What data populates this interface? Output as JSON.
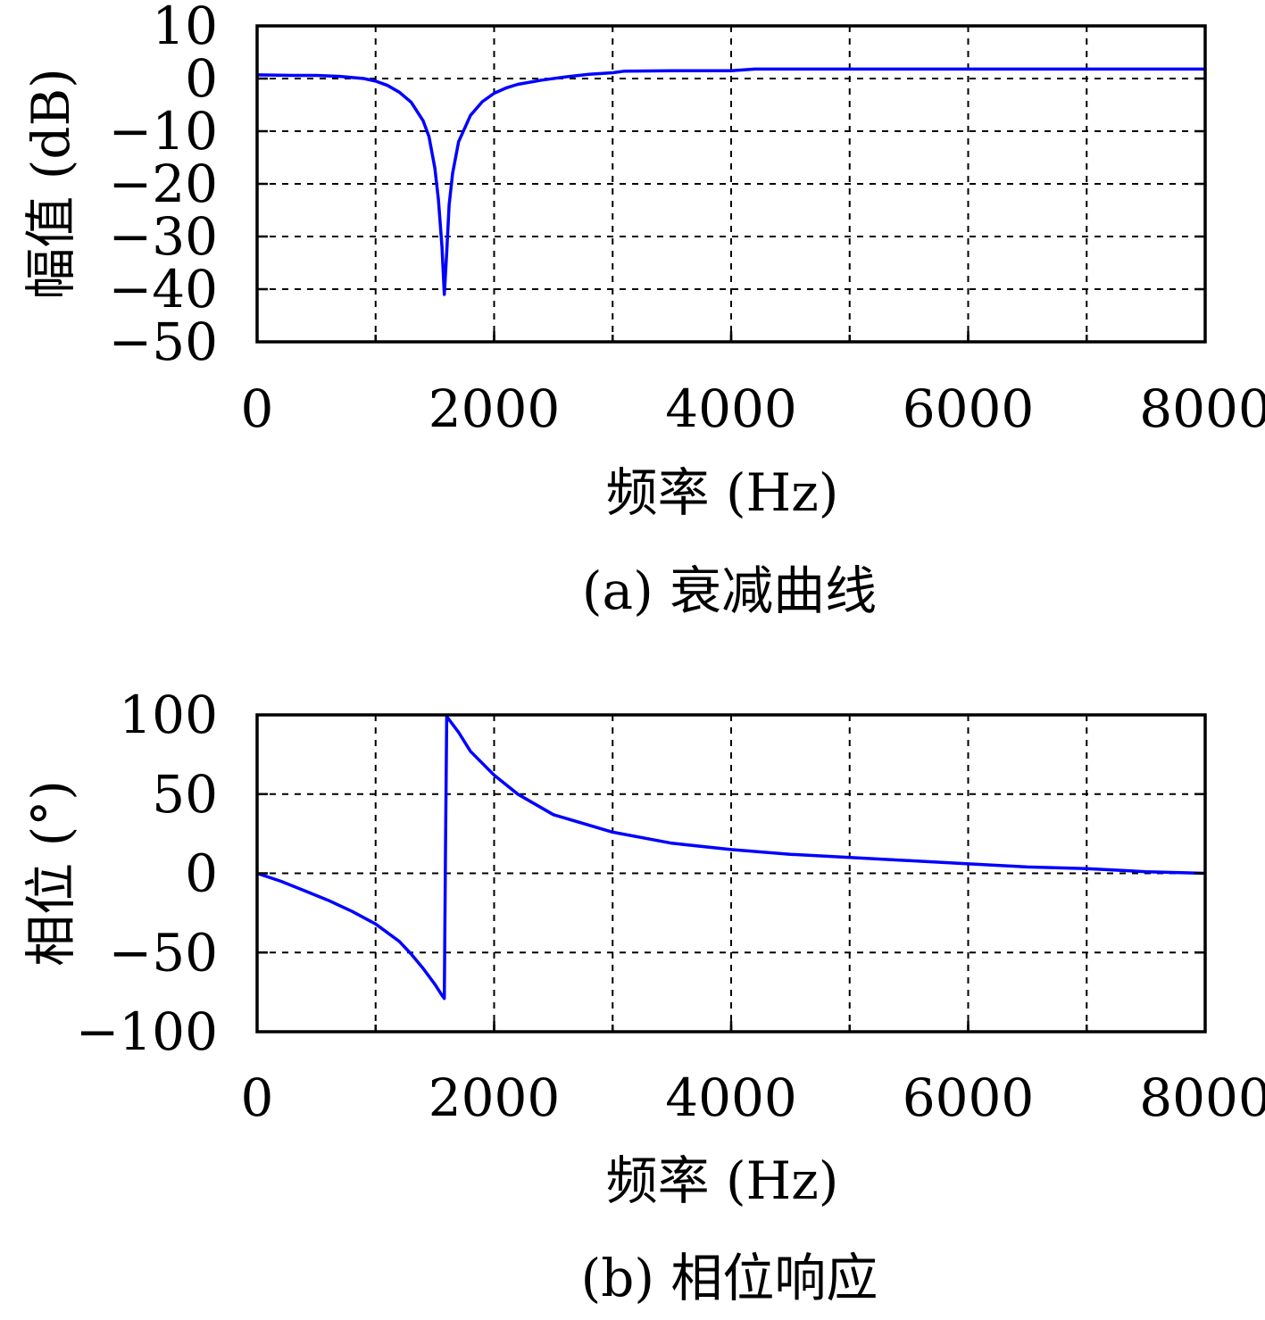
{
  "colors": {
    "line": "#0000ff",
    "axis": "#000000"
  },
  "chart_data": [
    {
      "type": "line",
      "caption": "(a) 衰减曲线",
      "xlabel": "频率 (Hz)",
      "ylabel": "幅值 (dB)",
      "xlim": [
        0,
        8000
      ],
      "ylim": [
        -50,
        10
      ],
      "xticks": [
        0,
        2000,
        4000,
        6000,
        8000
      ],
      "xtick_labels": [
        "0",
        "2000",
        "4000",
        "6000",
        "8000"
      ],
      "yticks": [
        10,
        0,
        -10,
        -20,
        -30,
        -40,
        -50
      ],
      "ytick_labels": [
        "10",
        "0",
        "−10",
        "−20",
        "−30",
        "−40",
        "−50"
      ],
      "grid": true,
      "series": [
        {
          "x": [
            0,
            300,
            500,
            700,
            900,
            1000,
            1100,
            1200,
            1300,
            1400,
            1450,
            1500,
            1530,
            1560,
            1580,
            1600,
            1620,
            1650,
            1700,
            1800,
            1900,
            2000,
            2100,
            2200,
            2400,
            2600,
            2800,
            3000,
            3100,
            3500,
            4000,
            4200,
            5000,
            6000,
            7000,
            8000
          ],
          "y": [
            0.7,
            0.6,
            0.6,
            0.4,
            0,
            -0.5,
            -1.3,
            -2.6,
            -4.5,
            -8,
            -11,
            -17,
            -23,
            -32,
            -41,
            -33,
            -24,
            -18,
            -12,
            -7,
            -4.4,
            -2.8,
            -1.8,
            -1.1,
            -0.3,
            0.3,
            0.8,
            1.1,
            1.4,
            1.5,
            1.5,
            1.8,
            1.8,
            1.8,
            1.8,
            1.8
          ]
        }
      ]
    },
    {
      "type": "line",
      "caption": "(b) 相位响应",
      "xlabel": "频率 (Hz)",
      "ylabel": "相位 (°)",
      "xlim": [
        0,
        8000
      ],
      "ylim": [
        -100,
        100
      ],
      "xticks": [
        0,
        2000,
        4000,
        6000,
        8000
      ],
      "xtick_labels": [
        "0",
        "2000",
        "4000",
        "6000",
        "8000"
      ],
      "yticks": [
        100,
        50,
        0,
        -50,
        -100
      ],
      "ytick_labels": [
        "100",
        "50",
        "0",
        "−50",
        "−100"
      ],
      "grid": true,
      "series": [
        {
          "x": [
            0,
            200,
            400,
            600,
            800,
            1000,
            1200,
            1300,
            1400,
            1500,
            1560,
            1580,
            1590,
            1600,
            1700,
            1800,
            2000,
            2200,
            2500,
            3000,
            3500,
            4000,
            4500,
            5000,
            5500,
            6000,
            6500,
            7000,
            7500,
            8000
          ],
          "y": [
            0,
            -5,
            -11,
            -17,
            -24,
            -32,
            -43,
            -51,
            -60,
            -70,
            -77,
            -79,
            20,
            99,
            89,
            77,
            62,
            50,
            37,
            26,
            19,
            15,
            12,
            10,
            8,
            6,
            4,
            3,
            1,
            0
          ]
        }
      ]
    }
  ]
}
